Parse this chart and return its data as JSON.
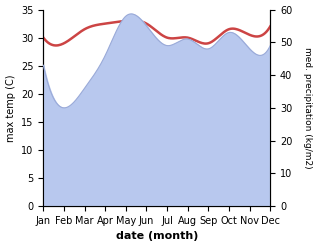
{
  "months": [
    "Jan",
    "Feb",
    "Mar",
    "Apr",
    "May",
    "Jun",
    "Jul",
    "Aug",
    "Sep",
    "Oct",
    "Nov",
    "Dec"
  ],
  "temp": [
    30.0,
    29.0,
    31.5,
    32.5,
    33.0,
    32.5,
    30.0,
    30.0,
    29.0,
    31.5,
    30.5,
    32.0
  ],
  "precip": [
    43.0,
    30.0,
    36.0,
    46.0,
    58.0,
    55.0,
    49.0,
    51.0,
    48.0,
    53.0,
    48.0,
    49.0
  ],
  "temp_color": "#cc4444",
  "precip_fill_color": "#b8c8ee",
  "precip_line_color": "#9aaad8",
  "ylim_left": [
    0,
    35
  ],
  "ylim_right": [
    0,
    60
  ],
  "yticks_left": [
    0,
    5,
    10,
    15,
    20,
    25,
    30,
    35
  ],
  "yticks_right": [
    0,
    10,
    20,
    30,
    40,
    50,
    60
  ],
  "xlabel": "date (month)",
  "ylabel_left": "max temp (C)",
  "ylabel_right": "med. precipitation (kg/m2)",
  "background_color": "#ffffff"
}
